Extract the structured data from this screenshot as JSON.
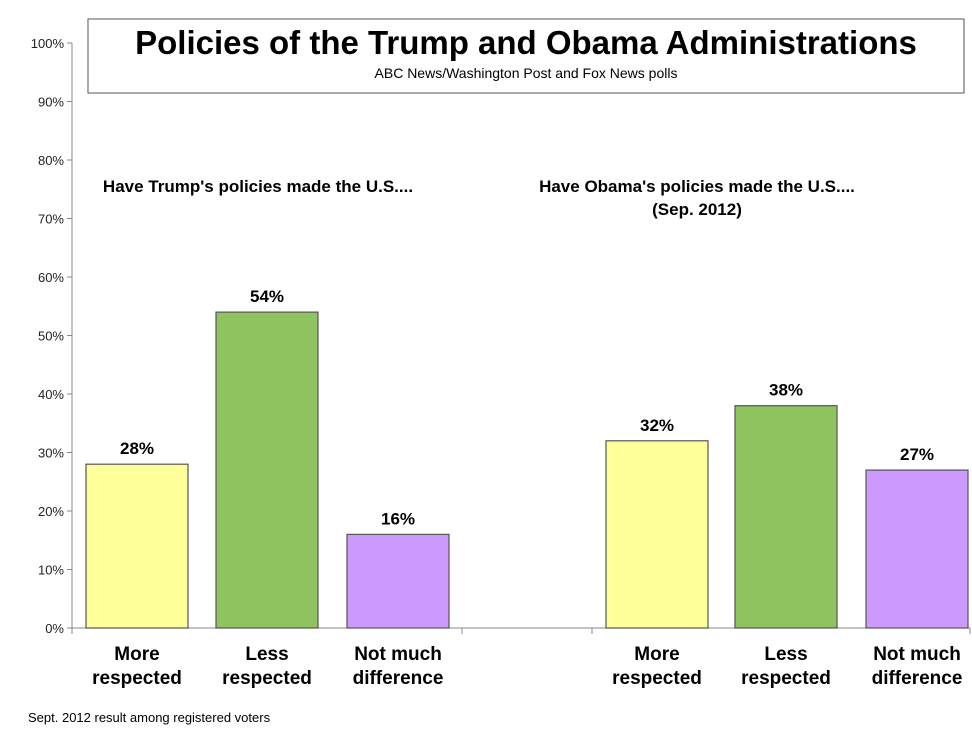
{
  "chart_data": {
    "type": "bar",
    "title": "Policies of the Trump and Obama Administrations",
    "subtitle": "ABC News/Washington Post and Fox News polls",
    "footnote": "Sept. 2012 result among registered voters",
    "ylim": [
      0,
      100
    ],
    "yticks": [
      "0%",
      "10%",
      "20%",
      "30%",
      "40%",
      "50%",
      "60%",
      "70%",
      "80%",
      "90%",
      "100%"
    ],
    "grid": false,
    "groups": [
      {
        "heading": [
          "Have Trump's policies made the U.S...."
        ],
        "categories": [
          [
            "More",
            "respected"
          ],
          [
            "Less",
            "respected"
          ],
          [
            "Not much",
            "difference"
          ]
        ],
        "values": [
          28,
          54,
          16
        ],
        "labels": [
          "28%",
          "54%",
          "16%"
        ]
      },
      {
        "heading": [
          "Have Obama's policies made the U.S....",
          "(Sep. 2012)"
        ],
        "categories": [
          [
            "More",
            "respected"
          ],
          [
            "Less",
            "respected"
          ],
          [
            "Not much",
            "difference"
          ]
        ],
        "values": [
          32,
          38,
          27
        ],
        "labels": [
          "32%",
          "38%",
          "27%"
        ]
      }
    ],
    "colors": [
      "#ffff99",
      "#8fc35f",
      "#cc99ff"
    ],
    "bar_stroke": "#555555"
  }
}
